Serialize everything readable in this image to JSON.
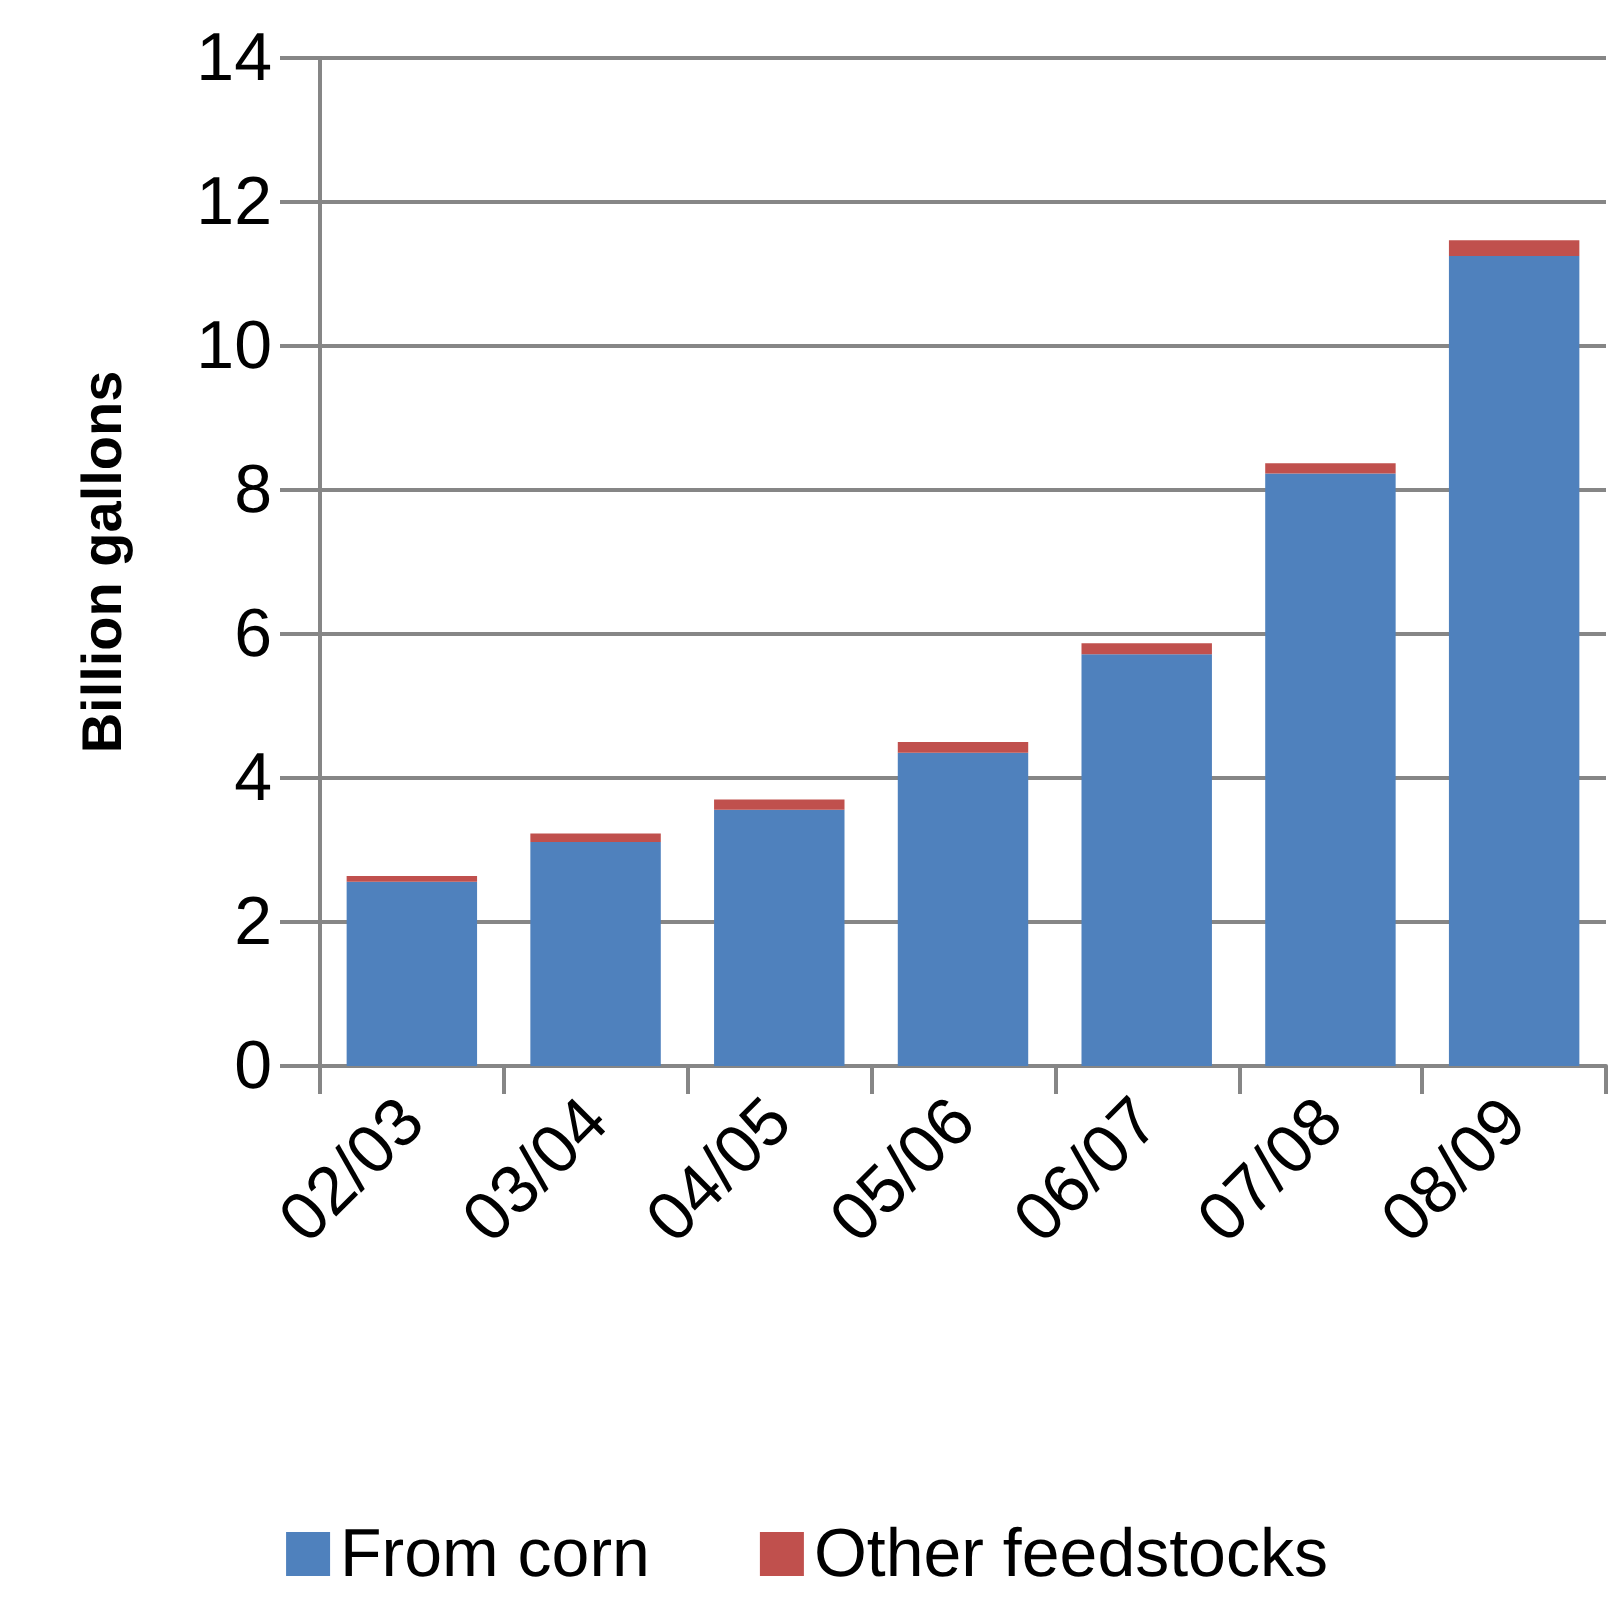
{
  "chart_data": {
    "type": "bar",
    "stacked": true,
    "ylabel": "Billion gallons",
    "categories": [
      "02/03",
      "03/04",
      "04/05",
      "05/06",
      "06/07",
      "07/08",
      "08/09"
    ],
    "series": [
      {
        "name": "From corn",
        "color": "#4f81bd",
        "values": [
          2.56,
          3.11,
          3.56,
          4.35,
          5.72,
          8.23,
          11.25
        ]
      },
      {
        "name": "Other feedstocks",
        "color": "#c0504d",
        "values": [
          0.08,
          0.12,
          0.14,
          0.15,
          0.15,
          0.14,
          0.22
        ]
      }
    ],
    "ylim": [
      0,
      14
    ],
    "yticks": [
      0,
      2,
      4,
      6,
      8,
      10,
      12,
      14
    ],
    "grid": "y",
    "legend": "bottom"
  }
}
